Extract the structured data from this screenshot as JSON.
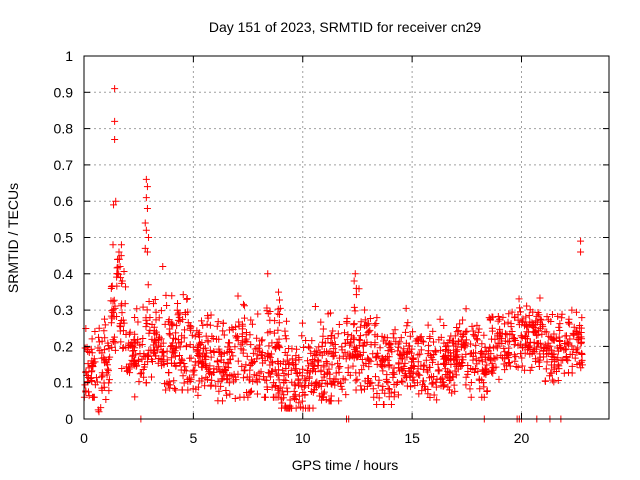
{
  "chart_data": {
    "type": "scatter",
    "title": "Day 151 of 2023, SRMTID for receiver cn29",
    "xlabel": "GPS time / hours",
    "ylabel": "SRMTID / TECUs",
    "xlim": [
      0,
      24
    ],
    "ylim": [
      0,
      1
    ],
    "xticks": [
      "0",
      "5",
      "10",
      "15",
      "20"
    ],
    "xtick_values": [
      0,
      5,
      10,
      15,
      20
    ],
    "yticks": [
      "0",
      "0.1",
      "0.2",
      "0.3",
      "0.4",
      "0.5",
      "0.6",
      "0.7",
      "0.8",
      "0.9",
      "1"
    ],
    "ytick_values": [
      0,
      0.1,
      0.2,
      0.3,
      0.4,
      0.5,
      0.6,
      0.7,
      0.8,
      0.9,
      1
    ],
    "grid": true,
    "marker": "+",
    "series_color": "#ff0000",
    "series": [
      {
        "name": "SRMTID",
        "description": "dense scatter of ~1800 points; representative values listed per time bin",
        "bins": [
          {
            "x_start": 0.0,
            "x_end": 0.6,
            "ymin": 0.06,
            "ymax": 0.3,
            "center": 0.14
          },
          {
            "x_start": 0.6,
            "x_end": 1.2,
            "ymin": 0.02,
            "ymax": 0.35,
            "center": 0.15
          },
          {
            "x_start": 1.2,
            "x_end": 1.9,
            "ymin": 0.1,
            "ymax": 0.48,
            "center": 0.32
          },
          {
            "x_start": 1.9,
            "x_end": 2.6,
            "ymin": 0.06,
            "ymax": 0.32,
            "center": 0.18
          },
          {
            "x_start": 2.6,
            "x_end": 3.3,
            "ymin": 0.1,
            "ymax": 0.45,
            "center": 0.22
          },
          {
            "x_start": 3.3,
            "x_end": 5.0,
            "ymin": 0.08,
            "ymax": 0.42,
            "center": 0.2
          },
          {
            "x_start": 5.0,
            "x_end": 7.0,
            "ymin": 0.05,
            "ymax": 0.33,
            "center": 0.17
          },
          {
            "x_start": 7.0,
            "x_end": 9.0,
            "ymin": 0.06,
            "ymax": 0.4,
            "center": 0.18
          },
          {
            "x_start": 9.0,
            "x_end": 10.5,
            "ymin": 0.03,
            "ymax": 0.31,
            "center": 0.12
          },
          {
            "x_start": 10.5,
            "x_end": 12.0,
            "ymin": 0.05,
            "ymax": 0.34,
            "center": 0.15
          },
          {
            "x_start": 12.0,
            "x_end": 13.0,
            "ymin": 0.08,
            "ymax": 0.4,
            "center": 0.19
          },
          {
            "x_start": 13.0,
            "x_end": 15.0,
            "ymin": 0.04,
            "ymax": 0.32,
            "center": 0.15
          },
          {
            "x_start": 15.0,
            "x_end": 17.0,
            "ymin": 0.05,
            "ymax": 0.3,
            "center": 0.16
          },
          {
            "x_start": 17.0,
            "x_end": 18.5,
            "ymin": 0.06,
            "ymax": 0.32,
            "center": 0.17
          },
          {
            "x_start": 18.5,
            "x_end": 19.5,
            "ymin": 0.08,
            "ymax": 0.35,
            "center": 0.2
          },
          {
            "x_start": 19.5,
            "x_end": 21.0,
            "ymin": 0.1,
            "ymax": 0.35,
            "center": 0.23
          },
          {
            "x_start": 21.0,
            "x_end": 22.0,
            "ymin": 0.06,
            "ymax": 0.36,
            "center": 0.2
          },
          {
            "x_start": 22.0,
            "x_end": 22.8,
            "ymin": 0.1,
            "ymax": 0.3,
            "center": 0.21
          }
        ],
        "outliers": [
          {
            "x": 1.4,
            "y": 0.91
          },
          {
            "x": 1.4,
            "y": 0.82
          },
          {
            "x": 1.4,
            "y": 0.77
          },
          {
            "x": 1.35,
            "y": 0.59
          },
          {
            "x": 1.45,
            "y": 0.6
          },
          {
            "x": 2.85,
            "y": 0.66
          },
          {
            "x": 2.9,
            "y": 0.64
          },
          {
            "x": 2.85,
            "y": 0.61
          },
          {
            "x": 2.9,
            "y": 0.58
          },
          {
            "x": 2.8,
            "y": 0.54
          },
          {
            "x": 2.85,
            "y": 0.52
          },
          {
            "x": 2.95,
            "y": 0.5
          },
          {
            "x": 2.8,
            "y": 0.47
          },
          {
            "x": 2.9,
            "y": 0.46
          },
          {
            "x": 1.6,
            "y": 0.46
          },
          {
            "x": 1.7,
            "y": 0.45
          },
          {
            "x": 1.55,
            "y": 0.44
          },
          {
            "x": 1.65,
            "y": 0.42
          },
          {
            "x": 1.5,
            "y": 0.4
          },
          {
            "x": 1.75,
            "y": 0.38
          },
          {
            "x": 3.6,
            "y": 0.42
          },
          {
            "x": 8.4,
            "y": 0.4
          },
          {
            "x": 12.4,
            "y": 0.4
          },
          {
            "x": 12.35,
            "y": 0.38
          },
          {
            "x": 12.45,
            "y": 0.36
          },
          {
            "x": 22.7,
            "y": 0.49
          },
          {
            "x": 22.7,
            "y": 0.46
          }
        ],
        "zero_points_x": [
          2.6,
          12.0,
          12.1,
          18.3,
          19.8,
          19.9,
          20.0,
          20.7,
          21.3,
          21.8
        ]
      }
    ]
  }
}
